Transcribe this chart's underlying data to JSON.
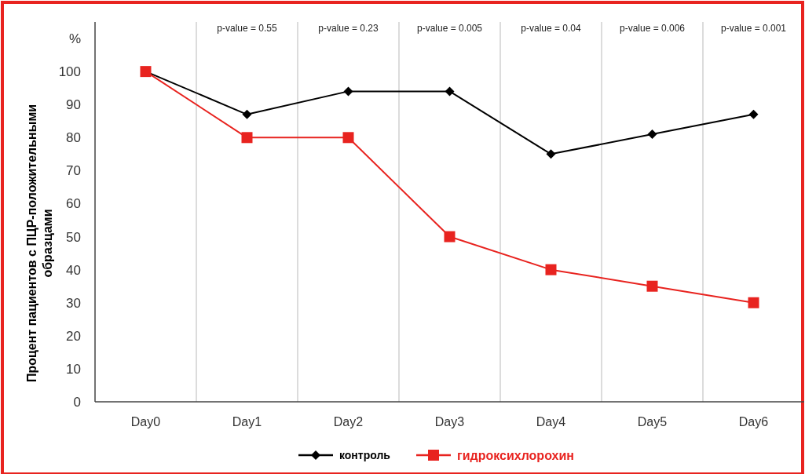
{
  "chart_data": {
    "type": "line",
    "ylabel": "Процент пациентов с ПЦР-положительными\nобразцами",
    "categories": [
      "Day0",
      "Day1",
      "Day2",
      "Day3",
      "Day4",
      "Day5",
      "Day6"
    ],
    "series": [
      {
        "name": "контроль",
        "color": "#000000",
        "marker": "diamond",
        "values": [
          100,
          87,
          94,
          94,
          75,
          81,
          87
        ]
      },
      {
        "name": "гидроксихлорохин",
        "color": "#e8231f",
        "marker": "square",
        "values": [
          100,
          80,
          80,
          50,
          40,
          35,
          30
        ]
      }
    ],
    "ylim": [
      0,
      115
    ],
    "yticks": [
      0,
      10,
      20,
      30,
      40,
      50,
      60,
      70,
      80,
      90,
      100,
      {
        "value": 110,
        "label": "%"
      }
    ],
    "grid": "x",
    "legend": "bottom",
    "line_style": "solid",
    "annotations": [
      "p-value = 0.55",
      "p-value = 0.23",
      "p-value = 0.005",
      "p-value = 0.04",
      "p-value = 0.006",
      "p-value = 0.001"
    ]
  }
}
